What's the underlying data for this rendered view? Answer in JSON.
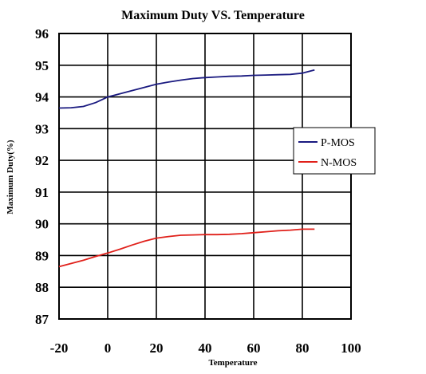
{
  "chart_data": {
    "type": "line",
    "title": "Maximum Duty VS. Temperature",
    "xlabel": "Temperature",
    "ylabel": "Maximum Duty(%)",
    "xlim": [
      -20,
      100
    ],
    "ylim": [
      87,
      96
    ],
    "xticks": [
      -20,
      0,
      20,
      40,
      60,
      80,
      100
    ],
    "yticks": [
      87,
      88,
      89,
      90,
      91,
      92,
      93,
      94,
      95,
      96
    ],
    "grid": true,
    "legend_position": "right-middle",
    "series": [
      {
        "name": "P-MOS",
        "color": "#1a1a80",
        "x": [
          -20,
          -15,
          -10,
          -5,
          0,
          5,
          10,
          15,
          20,
          25,
          30,
          35,
          40,
          45,
          50,
          55,
          60,
          65,
          70,
          75,
          80,
          85
        ],
        "y": [
          93.65,
          93.66,
          93.7,
          93.82,
          94.0,
          94.1,
          94.2,
          94.3,
          94.4,
          94.47,
          94.53,
          94.58,
          94.61,
          94.63,
          94.65,
          94.66,
          94.68,
          94.69,
          94.7,
          94.71,
          94.75,
          94.85
        ]
      },
      {
        "name": "N-MOS",
        "color": "#e0201a",
        "x": [
          -20,
          -15,
          -10,
          -5,
          0,
          5,
          10,
          15,
          20,
          25,
          30,
          35,
          40,
          45,
          50,
          55,
          60,
          65,
          70,
          75,
          80,
          85
        ],
        "y": [
          88.65,
          88.75,
          88.85,
          88.97,
          89.08,
          89.2,
          89.33,
          89.45,
          89.55,
          89.6,
          89.64,
          89.65,
          89.66,
          89.66,
          89.67,
          89.69,
          89.72,
          89.75,
          89.78,
          89.8,
          89.83,
          89.83
        ]
      }
    ]
  }
}
